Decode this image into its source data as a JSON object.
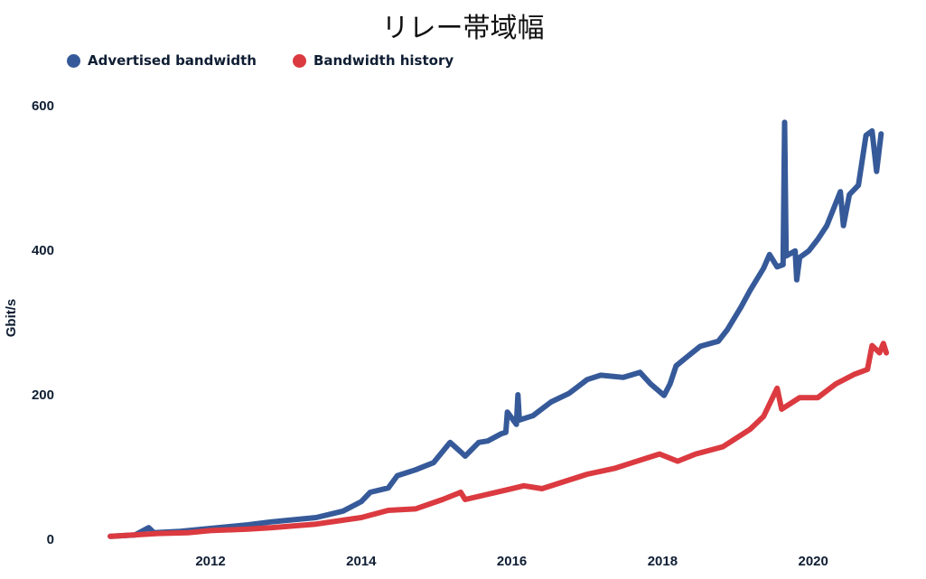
{
  "chart_data": {
    "type": "line",
    "title": "リレー帯域幅",
    "xlabel": "",
    "ylabel": "Gbit/s",
    "xlim": [
      2010.3,
      2021.4
    ],
    "ylim": [
      0,
      600
    ],
    "grid": false,
    "legend_placement": "top-left",
    "x_ticks": [
      2012,
      2014,
      2016,
      2018,
      2020
    ],
    "y_ticks": [
      0,
      200,
      400,
      600
    ],
    "series": [
      {
        "name": "Advertised bandwidth",
        "color": "#365a99",
        "x": [
          2010.67,
          2011.0,
          2011.18,
          2011.25,
          2011.6,
          2012.0,
          2012.5,
          2012.8,
          2013.4,
          2013.76,
          2014.0,
          2014.12,
          2014.36,
          2014.48,
          2014.72,
          2014.96,
          2015.18,
          2015.32,
          2015.38,
          2015.56,
          2015.68,
          2015.86,
          2015.92,
          2015.94,
          2016.06,
          2016.08,
          2016.1,
          2016.28,
          2016.52,
          2016.76,
          2017.0,
          2017.18,
          2017.48,
          2017.7,
          2017.84,
          2018.02,
          2018.1,
          2018.18,
          2018.32,
          2018.5,
          2018.74,
          2018.86,
          2019.04,
          2019.16,
          2019.34,
          2019.42,
          2019.52,
          2019.6,
          2019.62,
          2019.64,
          2019.76,
          2019.78,
          2019.82,
          2019.94,
          2020.06,
          2020.18,
          2020.36,
          2020.4,
          2020.48,
          2020.6,
          2020.7,
          2020.78,
          2020.84,
          2020.9
        ],
        "values": [
          4,
          6,
          16,
          9,
          11,
          15,
          20,
          24,
          30,
          39,
          52,
          65,
          71,
          88,
          96,
          106,
          134,
          121,
          115,
          134,
          136,
          146,
          148,
          176,
          159,
          200,
          165,
          171,
          190,
          202,
          221,
          227,
          224,
          231,
          215,
          199,
          215,
          240,
          252,
          267,
          274,
          290,
          321,
          344,
          375,
          394,
          377,
          380,
          577,
          392,
          399,
          359,
          390,
          399,
          415,
          434,
          481,
          434,
          477,
          490,
          559,
          565,
          509,
          561
        ]
      },
      {
        "name": "Bandwidth history",
        "color": "#db3a40",
        "x": [
          2010.67,
          2011.3,
          2011.7,
          2012.0,
          2012.5,
          2012.8,
          2013.4,
          2014.0,
          2014.36,
          2014.72,
          2015.08,
          2015.32,
          2015.38,
          2015.92,
          2016.16,
          2016.4,
          2016.76,
          2017.0,
          2017.36,
          2017.6,
          2017.96,
          2018.2,
          2018.44,
          2018.8,
          2019.16,
          2019.34,
          2019.52,
          2019.58,
          2019.82,
          2020.06,
          2020.3,
          2020.54,
          2020.72,
          2020.78,
          2020.88,
          2020.93,
          2020.97
        ],
        "values": [
          4,
          8,
          9,
          12,
          14,
          16,
          21,
          30,
          40,
          42,
          55,
          65,
          55,
          68,
          74,
          70,
          82,
          90,
          98,
          106,
          118,
          108,
          118,
          128,
          152,
          170,
          209,
          180,
          196,
          196,
          215,
          228,
          235,
          268,
          258,
          271,
          258
        ]
      }
    ]
  }
}
